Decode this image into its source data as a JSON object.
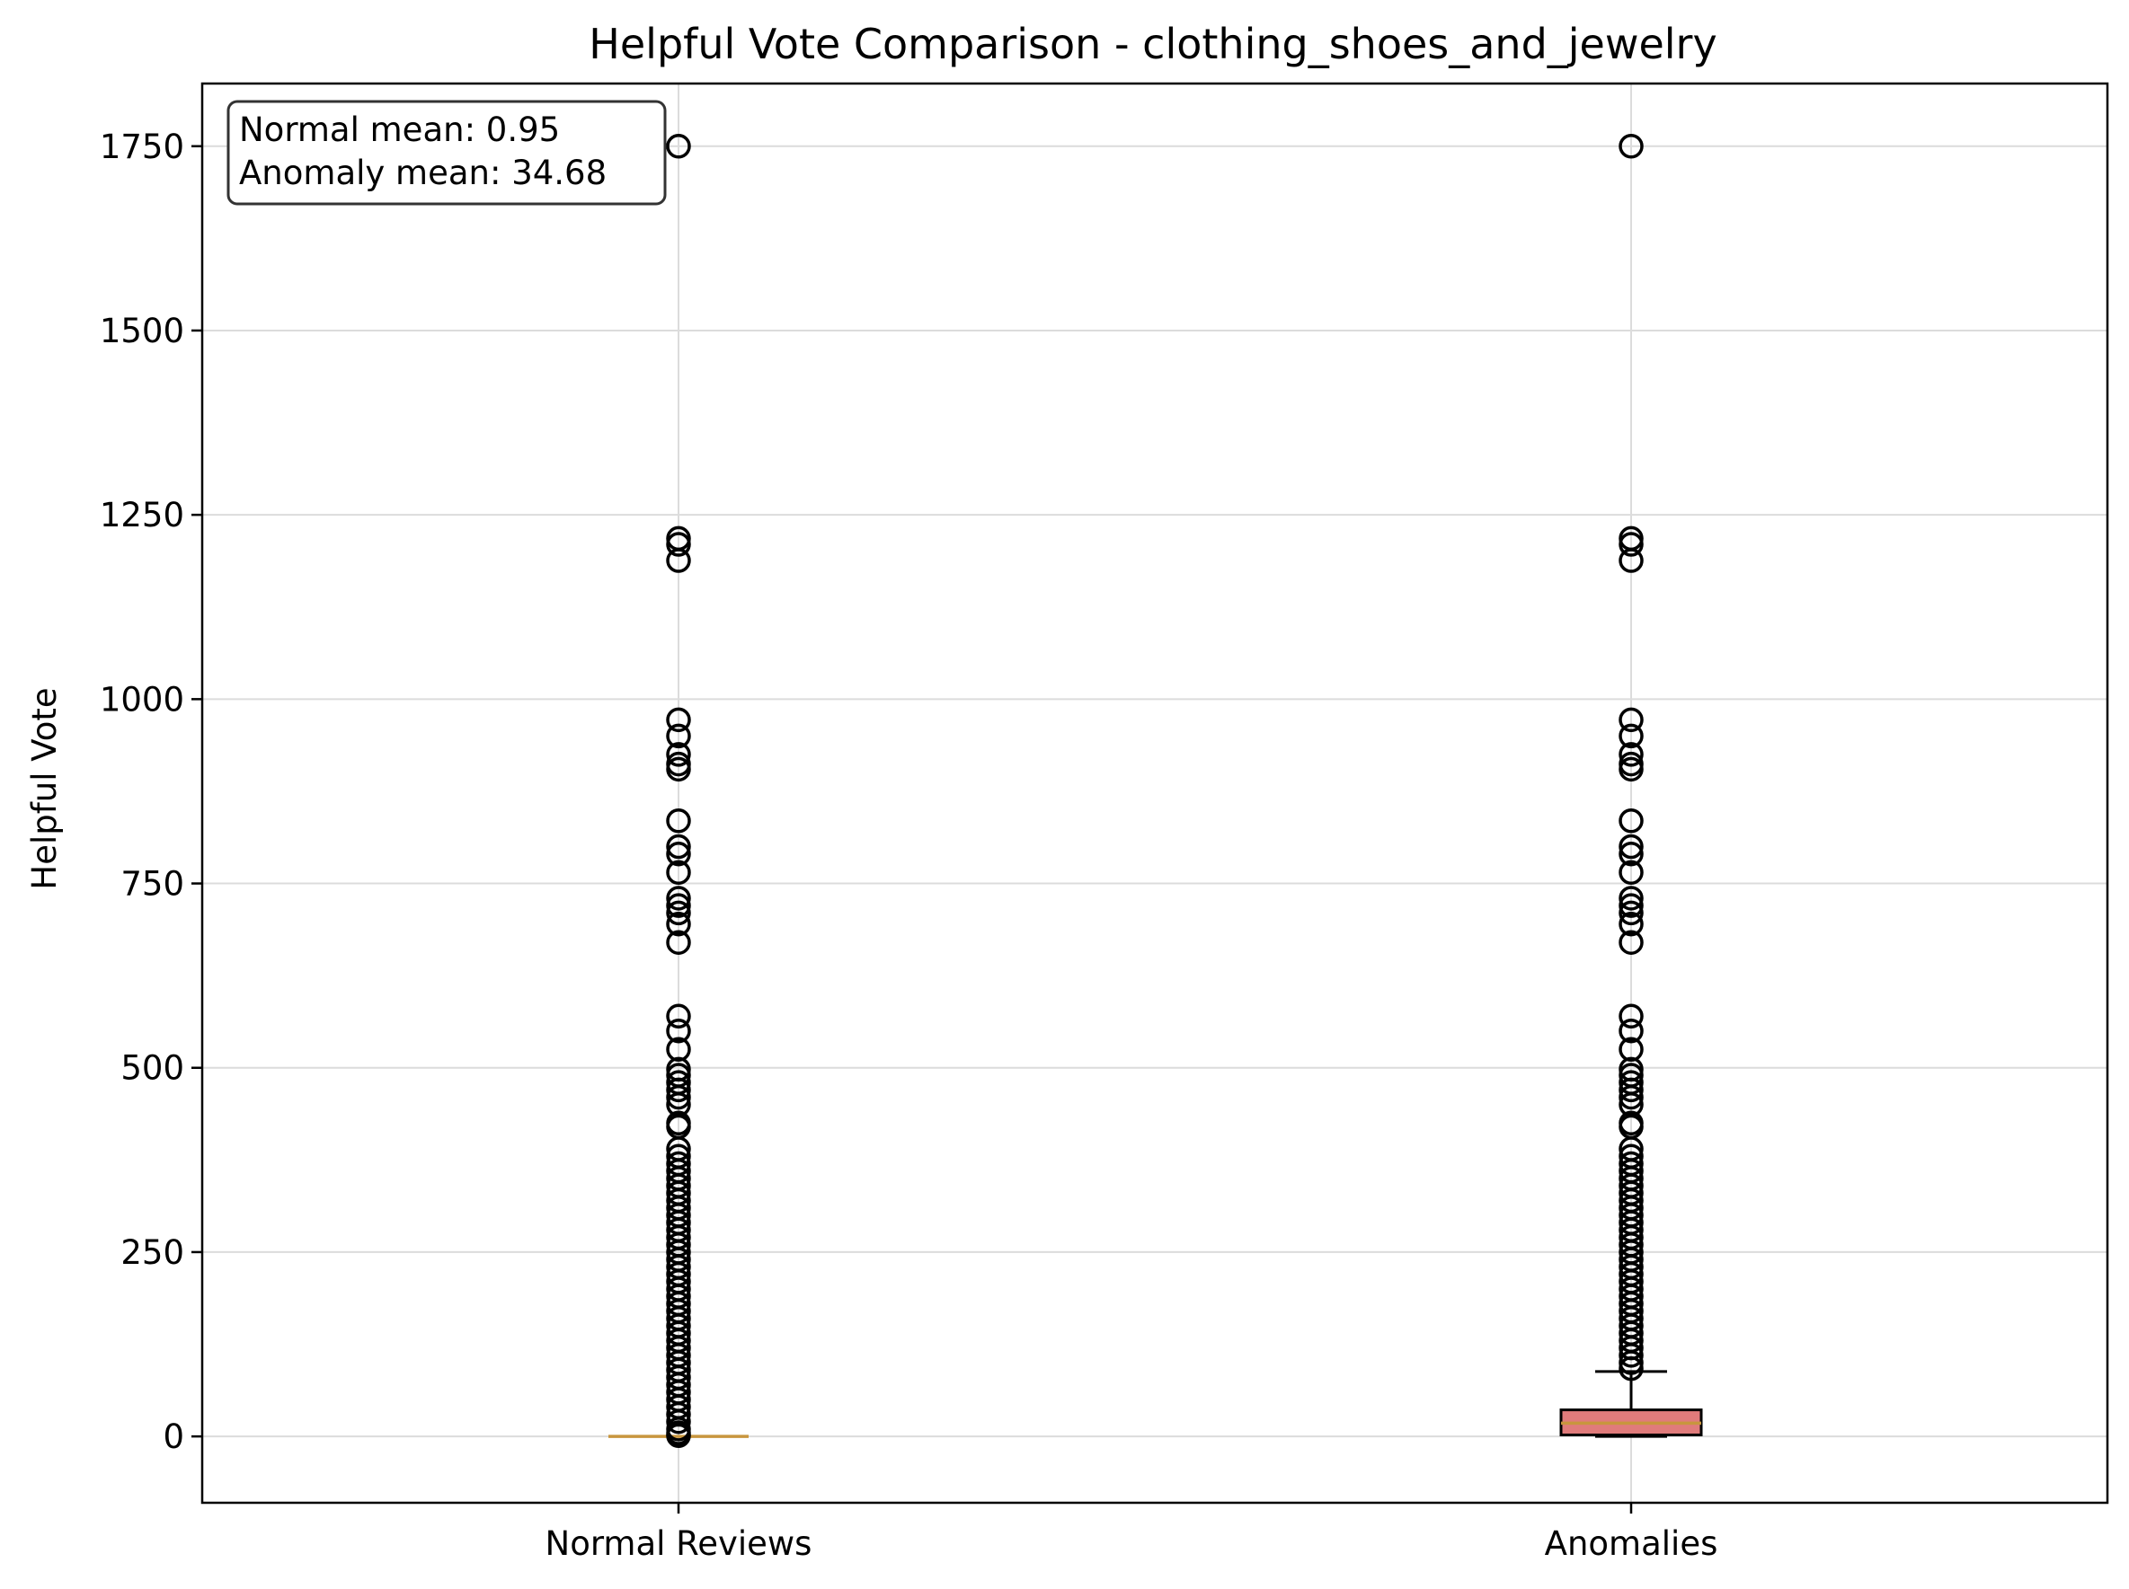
{
  "chart_data": {
    "type": "box",
    "title": "Helpful Vote Comparison - clothing_shoes_and_jewelry",
    "xlabel": "",
    "ylabel": "Helpful Vote",
    "ylim": [
      -90,
      1835
    ],
    "yticks": [
      0,
      250,
      500,
      750,
      1000,
      1250,
      1500,
      1750
    ],
    "grid": true,
    "annotation": {
      "lines": [
        "Normal mean: 0.95",
        "Anomaly mean: 34.68"
      ],
      "placement": "top-left"
    },
    "series": [
      {
        "name": "Normal Reviews",
        "box_fill": "#e07b7b",
        "median_color": "#c8963e",
        "q1": 0,
        "median": 0,
        "q3": 0,
        "whisker_low": 0,
        "whisker_high": 0,
        "fliers": [
          1750,
          1218,
          1210,
          1188,
          972,
          950,
          925,
          912,
          905,
          835,
          800,
          790,
          765,
          730,
          720,
          710,
          695,
          670,
          570,
          550,
          525,
          498,
          490,
          480,
          470,
          460,
          450,
          425,
          420,
          390,
          380,
          370,
          360,
          350,
          340,
          330,
          320,
          310,
          300,
          290,
          280,
          270,
          260,
          250,
          240,
          230,
          220,
          210,
          200,
          190,
          180,
          170,
          160,
          150,
          140,
          130,
          120,
          110,
          100,
          90,
          80,
          70,
          60,
          50,
          40,
          30,
          20,
          10,
          5,
          2,
          1
        ]
      },
      {
        "name": "Anomalies",
        "box_fill": "#e07b7b",
        "median_color": "#c8963e",
        "q1": 2,
        "median": 18,
        "q3": 36,
        "whisker_low": 0,
        "whisker_high": 88,
        "fliers": [
          1750,
          1218,
          1210,
          1188,
          972,
          950,
          925,
          912,
          905,
          835,
          800,
          790,
          765,
          730,
          720,
          710,
          695,
          670,
          570,
          550,
          525,
          498,
          490,
          480,
          470,
          460,
          450,
          425,
          420,
          390,
          380,
          370,
          360,
          350,
          340,
          330,
          320,
          310,
          300,
          290,
          280,
          270,
          260,
          250,
          240,
          230,
          220,
          210,
          200,
          190,
          180,
          170,
          160,
          150,
          140,
          130,
          120,
          110,
          100,
          92
        ]
      }
    ]
  }
}
